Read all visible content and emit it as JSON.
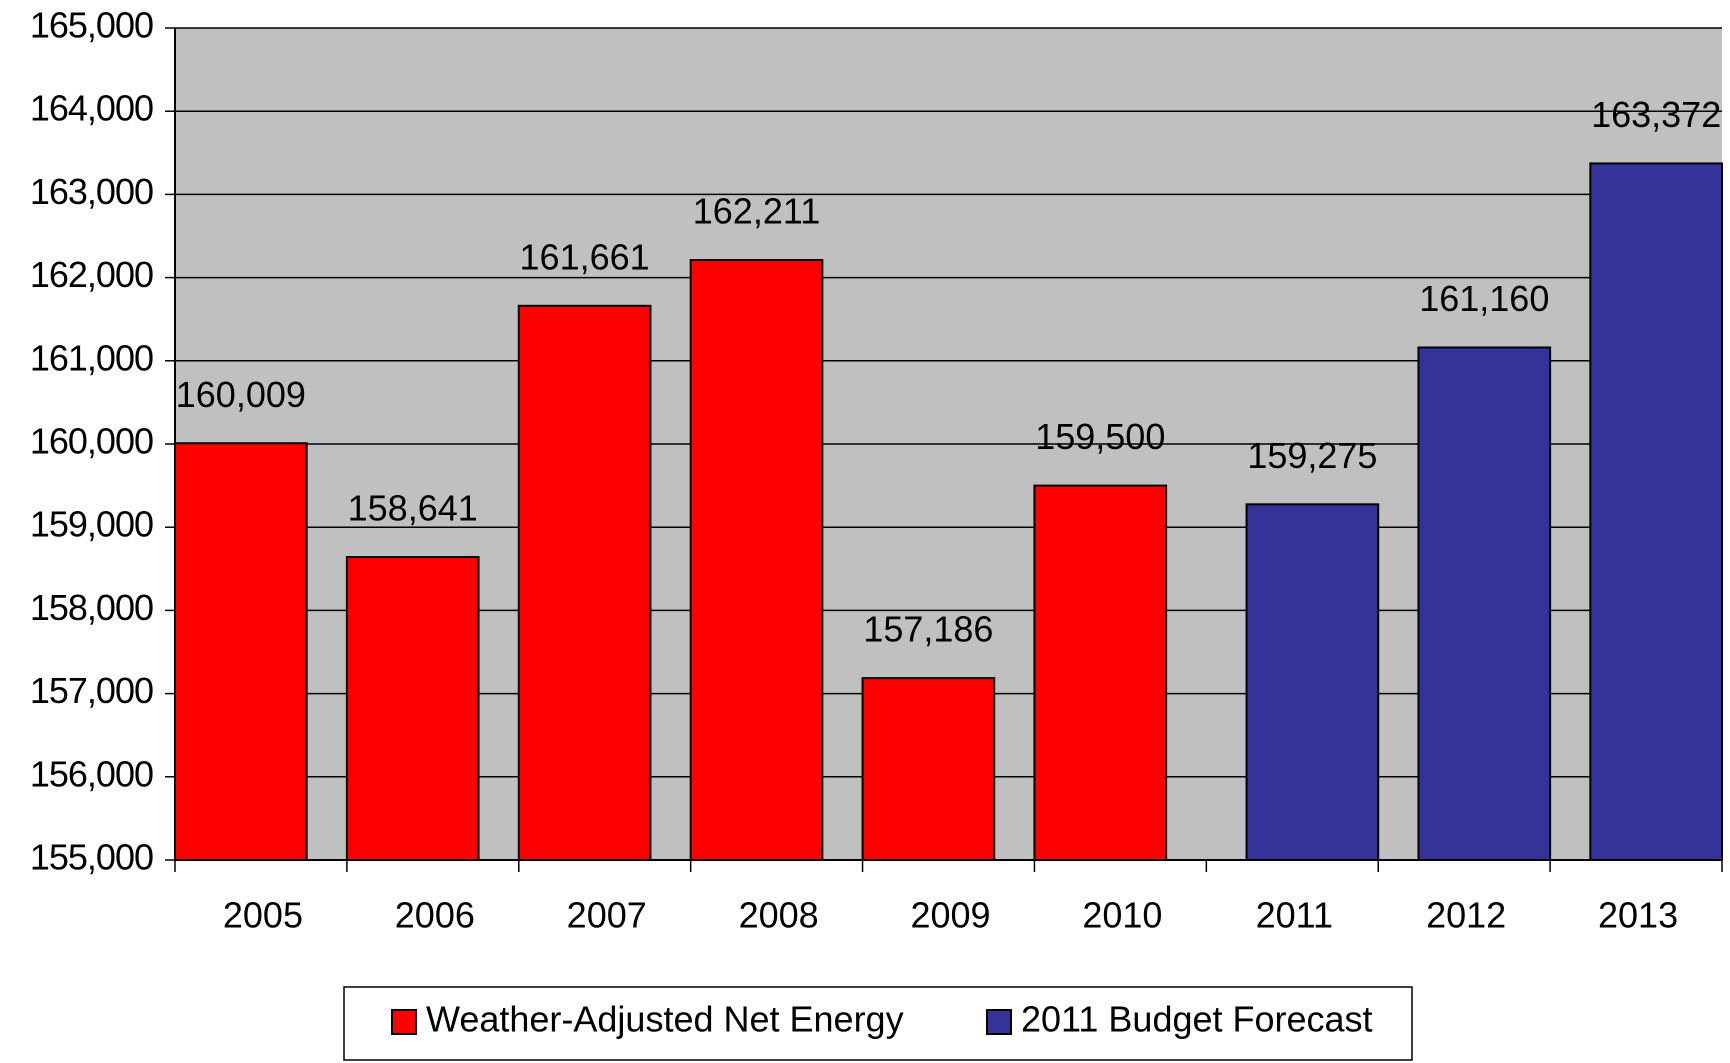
{
  "chart_data": {
    "type": "bar",
    "categories": [
      "2005",
      "2006",
      "2007",
      "2008",
      "2009",
      "2010",
      "2011",
      "2012",
      "2013"
    ],
    "series": [
      {
        "name": "Weather-Adjusted Net Energy",
        "color": "#ff0000",
        "values": [
          160009,
          158641,
          161661,
          162211,
          157186,
          159500,
          null,
          null,
          null
        ],
        "value_labels": [
          "160,009",
          "158,641",
          "161,661",
          "162,211",
          "157,186",
          "159,500",
          null,
          null,
          null
        ]
      },
      {
        "name": "2011 Budget Forecast",
        "color": "#333399",
        "values": [
          null,
          null,
          null,
          null,
          null,
          null,
          159275,
          161160,
          163372
        ],
        "value_labels": [
          null,
          null,
          null,
          null,
          null,
          null,
          "159,275",
          "161,160",
          "163,372"
        ]
      }
    ],
    "ylim": [
      155000,
      165000
    ],
    "yticks": [
      {
        "value": 155000,
        "label": "155,000"
      },
      {
        "value": 156000,
        "label": "156,000"
      },
      {
        "value": 157000,
        "label": "157,000"
      },
      {
        "value": 158000,
        "label": "158,000"
      },
      {
        "value": 159000,
        "label": "159,000"
      },
      {
        "value": 160000,
        "label": "160,000"
      },
      {
        "value": 161000,
        "label": "161,000"
      },
      {
        "value": 162000,
        "label": "162,000"
      },
      {
        "value": 163000,
        "label": "163,000"
      },
      {
        "value": 164000,
        "label": "164,000"
      },
      {
        "value": 165000,
        "label": "165,000"
      }
    ],
    "grid": true,
    "background": "#c0c0c0",
    "legend": "bottom"
  }
}
